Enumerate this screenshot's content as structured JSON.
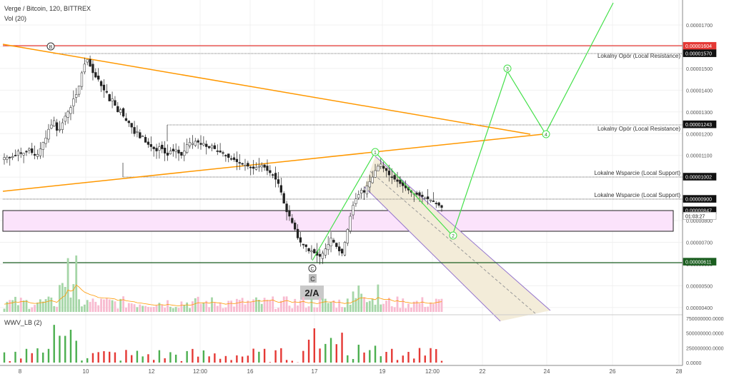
{
  "header": {
    "title": "Verge / Bitcoin, 120, BITTREX",
    "volume_label": "Vol (20)",
    "indicator_label": "WWV_LB (2)"
  },
  "colors": {
    "up": "#4caf50",
    "down": "#e53935",
    "candle": "#222222",
    "orange": "#ff9800",
    "green_path": "#43e049",
    "resistance_red": "#e53935",
    "support_dark_green": "#1b5e20",
    "zone_fill": "#fbe3fb",
    "channel_fill": "#f3ecd9",
    "channel_border": "#9575cd"
  },
  "price_axis": {
    "ticks": [
      "0.00001700",
      "0.00001600",
      "0.00001500",
      "0.00001400",
      "0.00001300",
      "0.00001200",
      "0.00001100",
      "0.00001000",
      "0.00000900",
      "0.00000800",
      "0.00000700",
      "0.00000600",
      "0.00000500",
      "0.00000400"
    ],
    "tick_values": [
      1700,
      1600,
      1500,
      1400,
      1300,
      1200,
      1100,
      1000,
      900,
      800,
      700,
      600,
      500,
      400
    ],
    "price_tags": [
      {
        "label": "0.00001604",
        "value": 1604,
        "style": "red"
      },
      {
        "label": "0.00001570",
        "value": 1570,
        "style": "black"
      },
      {
        "label": "0.00001243",
        "value": 1243,
        "style": "black"
      },
      {
        "label": "0.00001002",
        "value": 1002,
        "style": "black"
      },
      {
        "label": "0.00000900",
        "value": 900,
        "style": "black"
      },
      {
        "label": "0.00000847",
        "value": 847,
        "style": "black"
      },
      {
        "label": "01:03:27",
        "value": 822,
        "style": "countdown"
      },
      {
        "label": "0.00000611",
        "value": 611,
        "style": "green"
      }
    ]
  },
  "indicator_axis": {
    "ticks": [
      "750000000.0000",
      "500000000.0000",
      "250000000.0000",
      "0.0000"
    ],
    "tick_values": [
      750000000,
      500000000,
      250000000,
      0
    ]
  },
  "time_axis": {
    "labels": [
      "8",
      "10",
      "12",
      "12:00",
      "16",
      "17",
      "19",
      "12:00",
      "22",
      "24",
      "26",
      "28"
    ]
  },
  "annotations": {
    "resistance_1": "Lokalny Opór (Local Resistance)",
    "resistance_2": "Lokalny Opór (Local Resistance)",
    "support_1": "Lokalne Wsparcie (Local Support)",
    "support_2": "Lokalne Wsparcie (Local Support)",
    "wave_B": "B",
    "wave_C": "C",
    "wave_1": "1",
    "wave_2": "2",
    "wave_3": "3",
    "wave_4": "4",
    "box_C": "C",
    "box_2A": "2/A"
  },
  "chart_data": {
    "type": "candlestick",
    "symbol": "Verge / Bitcoin",
    "timeframe": "120",
    "exchange": "BITTREX",
    "y_range": [
      385,
      1745
    ],
    "horizontal_levels": [
      1604,
      1570,
      1243,
      1002,
      900,
      611
    ],
    "candles_start": [
      1090,
      1092,
      1088,
      1095,
      1100,
      1120,
      1108,
      1110,
      1115,
      1130,
      1112,
      1100,
      1105,
      1130,
      1160,
      1180,
      1220,
      1240,
      1260,
      1215,
      1220,
      1250,
      1280,
      1300,
      1320,
      1360,
      1380,
      1420,
      1480,
      1520,
      1540,
      1510,
      1480,
      1460,
      1450,
      1420,
      1400,
      1390,
      1350,
      1360,
      1330,
      1300,
      1310,
      1280,
      1260,
      1250,
      1230,
      1200,
      1210,
      1180,
      1190,
      1160,
      1150,
      1140,
      1130,
      1120,
      1140,
      1130,
      1110,
      1100,
      1120,
      1120,
      1125,
      1110,
      1100,
      1120,
      1150,
      1160,
      1155,
      1165,
      1160,
      1150,
      1155,
      1140,
      1135,
      1145,
      1130,
      1120,
      1115,
      1110,
      1100,
      1090,
      1085,
      1080,
      1070,
      1065,
      1060,
      1055,
      1050,
      1045,
      1040,
      1045,
      1050,
      1055,
      1045,
      1030,
      1020,
      1010,
      990,
      970,
      930,
      880,
      840,
      820,
      790,
      760,
      720,
      700,
      690,
      680,
      660,
      660,
      650,
      640,
      635,
      650,
      670,
      690,
      720,
      700,
      680,
      660,
      650,
      700,
      760,
      820,
      870,
      900,
      920,
      940,
      930,
      960,
      980,
      1000,
      1030,
      1050,
      1060,
      1040,
      1030,
      1010,
      1000,
      990,
      980,
      970,
      960,
      950,
      940,
      930,
      925,
      920,
      915,
      910,
      905,
      900,
      895,
      890,
      880,
      870,
      860
    ]
  }
}
